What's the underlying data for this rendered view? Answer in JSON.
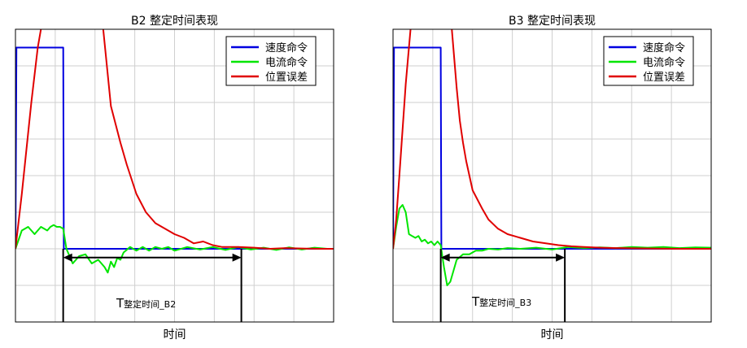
{
  "charts": [
    {
      "title": "B2 整定时间表现",
      "xlabel": "时间",
      "settle_label_main": "T",
      "settle_label_sub": "整定时间_B2",
      "legend": [
        "速度命令",
        "电流命令",
        "位置误差"
      ]
    },
    {
      "title": "B3 整定时间表现",
      "xlabel": "时间",
      "settle_label_main": "T",
      "settle_label_sub": "整定时间_B3",
      "legend": [
        "速度命令",
        "电流命令",
        "位置误差"
      ]
    }
  ],
  "colors": {
    "speed": "#0000e0",
    "current": "#00e600",
    "error": "#e00000",
    "grid": "#cfcfcf"
  },
  "chart_data": [
    {
      "type": "line",
      "title": "B2 整定时间表现",
      "xlabel": "时间",
      "xlim": [
        0,
        100
      ],
      "ylim": [
        -2,
        6
      ],
      "grid": true,
      "legend_position": "top-right",
      "series": [
        {
          "name": "速度命令",
          "color": "#0000e0",
          "x": [
            0,
            0.3,
            15,
            15.2,
            100
          ],
          "y": [
            0,
            5.5,
            5.5,
            0,
            0
          ]
        },
        {
          "name": "电流命令",
          "color": "#00e600",
          "x": [
            0,
            2,
            4,
            6,
            8,
            10,
            11,
            12,
            13,
            14,
            15,
            16,
            18,
            20,
            22,
            24,
            26,
            28,
            29,
            30,
            31,
            32,
            33,
            34,
            36,
            38,
            40,
            42,
            44,
            46,
            48,
            50,
            54,
            58,
            62,
            66,
            70,
            74,
            78,
            82,
            86,
            90,
            94,
            98,
            100
          ],
          "y": [
            0,
            0.5,
            0.6,
            0.4,
            0.6,
            0.5,
            0.6,
            0.65,
            0.6,
            0.6,
            0.55,
            0.0,
            -0.4,
            -0.2,
            -0.15,
            -0.4,
            -0.3,
            -0.5,
            -0.65,
            -0.35,
            -0.5,
            -0.25,
            -0.3,
            -0.1,
            0.05,
            -0.05,
            0.05,
            -0.05,
            0.05,
            0.0,
            0.05,
            -0.05,
            0.05,
            -0.02,
            0.05,
            -0.03,
            0.05,
            -0.02,
            0.03,
            -0.03,
            0.04,
            -0.02,
            0.03,
            0.0,
            0.0
          ]
        },
        {
          "name": "位置误差",
          "color": "#e00000",
          "x": [
            0,
            2,
            5,
            7,
            9,
            27,
            30,
            33,
            35,
            38,
            41,
            44,
            47,
            50,
            53,
            56,
            59,
            62,
            65,
            70,
            75,
            80,
            85,
            90,
            95,
            100
          ],
          "y": [
            0,
            1.5,
            4.0,
            5.5,
            6.5,
            6.5,
            3.9,
            2.9,
            2.3,
            1.5,
            1.0,
            0.7,
            0.55,
            0.4,
            0.3,
            0.15,
            0.2,
            0.1,
            0.05,
            0.05,
            0.03,
            0.0,
            0.02,
            0.01,
            0.0,
            0.0
          ]
        }
      ],
      "annotation": {
        "settle_start_x": 15,
        "settle_end_x": 71
      }
    },
    {
      "type": "line",
      "title": "B3 整定时间表现",
      "xlabel": "时间",
      "xlim": [
        0,
        100
      ],
      "ylim": [
        -2,
        6
      ],
      "grid": true,
      "legend_position": "top-right",
      "series": [
        {
          "name": "速度命令",
          "color": "#0000e0",
          "x": [
            0,
            0.3,
            15,
            15.2,
            100
          ],
          "y": [
            0,
            5.5,
            5.5,
            0,
            0
          ]
        },
        {
          "name": "电流命令",
          "color": "#00e600",
          "x": [
            0,
            1,
            2,
            3,
            4,
            5,
            6,
            7,
            8,
            9,
            10,
            11,
            12,
            13,
            14,
            15,
            16,
            17,
            18,
            19,
            20,
            22,
            24,
            26,
            28,
            30,
            33,
            36,
            40,
            45,
            50,
            55,
            60,
            65,
            70,
            75,
            80,
            85,
            90,
            95,
            100
          ],
          "y": [
            0,
            0.6,
            1.1,
            1.2,
            1.0,
            0.4,
            0.35,
            0.3,
            0.35,
            0.2,
            0.25,
            0.15,
            0.2,
            0.1,
            0.2,
            0.1,
            -0.5,
            -1.0,
            -0.9,
            -0.6,
            -0.3,
            -0.15,
            -0.15,
            -0.05,
            -0.05,
            0.0,
            -0.02,
            0.02,
            0.0,
            0.03,
            -0.02,
            0.05,
            0.02,
            0.04,
            0.02,
            0.05,
            0.03,
            0.05,
            0.02,
            0.04,
            0.03
          ]
        },
        {
          "name": "位置误差",
          "color": "#e00000",
          "x": [
            0,
            1,
            2,
            4,
            6,
            18,
            20,
            21,
            22,
            23,
            25,
            28,
            30,
            33,
            36,
            40,
            44,
            48,
            52,
            56,
            60,
            65,
            70,
            80,
            90,
            100
          ],
          "y": [
            0,
            0.8,
            2.0,
            4.5,
            6.5,
            6.5,
            4.4,
            3.5,
            2.9,
            2.4,
            1.6,
            1.1,
            0.8,
            0.55,
            0.4,
            0.3,
            0.2,
            0.15,
            0.1,
            0.07,
            0.05,
            0.03,
            0.02,
            0.01,
            0.0,
            0.0
          ]
        }
      ],
      "annotation": {
        "settle_start_x": 15,
        "settle_end_x": 54
      }
    }
  ]
}
